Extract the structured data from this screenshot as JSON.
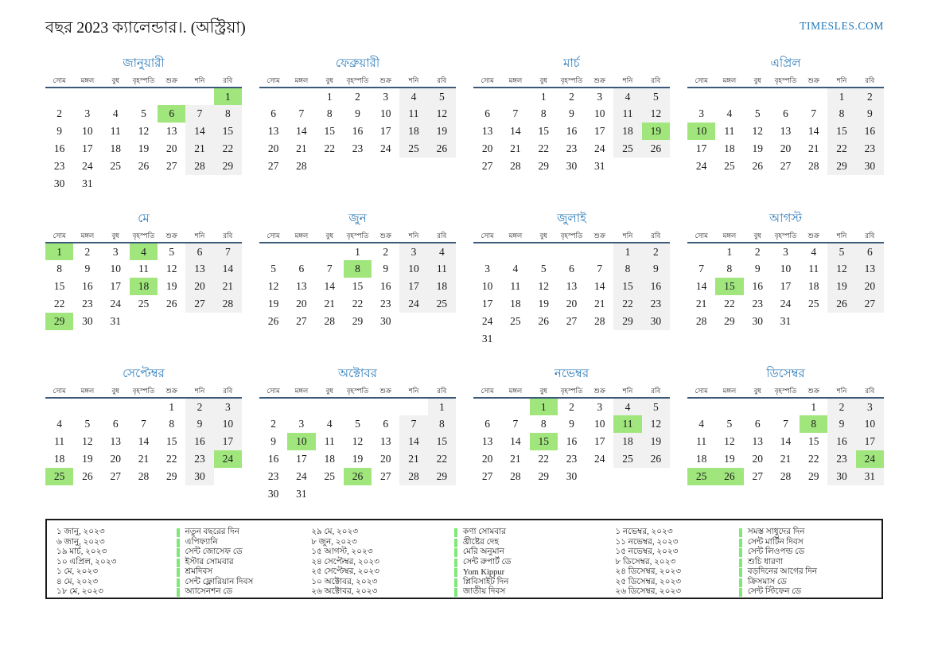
{
  "page": {
    "title": "বছর 2023 ক্যালেন্ডার।. (অস্ট্রিয়া)",
    "brand": "TIMESLES.COM"
  },
  "colors": {
    "accent_blue": "#2b7bba",
    "header_line": "#3c5a78",
    "weekend_bg": "#f1f1f1",
    "holiday_green": "#a0e67d",
    "legend_bar_green": "#80e878"
  },
  "weekdays": [
    "সোম",
    "মঙ্গল",
    "বুধ",
    "বৃহস্পতি",
    "শুক্র",
    "শনি",
    "রবি"
  ],
  "months": [
    {
      "name": "জানুয়ারী",
      "start": 6,
      "days": 31,
      "holidays": [
        1,
        6
      ]
    },
    {
      "name": "ফেব্রুয়ারী",
      "start": 2,
      "days": 28,
      "holidays": []
    },
    {
      "name": "মার্চ",
      "start": 2,
      "days": 31,
      "holidays": [
        19
      ]
    },
    {
      "name": "এপ্রিল",
      "start": 5,
      "days": 30,
      "holidays": [
        10
      ]
    },
    {
      "name": "মে",
      "start": 0,
      "days": 31,
      "holidays": [
        1,
        4,
        18,
        29
      ]
    },
    {
      "name": "জুন",
      "start": 3,
      "days": 30,
      "holidays": [
        8
      ]
    },
    {
      "name": "জুলাই",
      "start": 5,
      "days": 31,
      "holidays": []
    },
    {
      "name": "আগস্ট",
      "start": 1,
      "days": 31,
      "holidays": [
        15
      ]
    },
    {
      "name": "সেপ্টেম্বর",
      "start": 4,
      "days": 30,
      "holidays": [
        24,
        25
      ]
    },
    {
      "name": "অক্টোবর",
      "start": 6,
      "days": 31,
      "holidays": [
        10,
        26
      ]
    },
    {
      "name": "নভেম্বর",
      "start": 2,
      "days": 30,
      "holidays": [
        1,
        11,
        15
      ]
    },
    {
      "name": "ডিসেম্বর",
      "start": 4,
      "days": 31,
      "holidays": [
        8,
        24,
        25,
        26
      ]
    }
  ],
  "legend": {
    "columns": [
      [
        {
          "date": "১ জানু, ২০২৩",
          "name": "নতুন বছরের দিন"
        },
        {
          "date": "৬ জানু, ২০২৩",
          "name": "এপিফ্যানি"
        },
        {
          "date": "১৯ মার্চ, ২০২৩",
          "name": "সেন্ট জোসেফ ডে"
        },
        {
          "date": "১০ এপ্রিল, ২০২৩",
          "name": "ইস্টার সোমবার"
        },
        {
          "date": "১ মে, ২০২৩",
          "name": "শ্রমদিবস"
        },
        {
          "date": "৪ মে, ২০২৩",
          "name": "সেন্ট ফ্লোরিয়ান দিবস"
        },
        {
          "date": "১৮ মে, ২০২৩",
          "name": "অ্যাসেনশন ডে"
        }
      ],
      [
        {
          "date": "২৯ মে, ২০২৩",
          "name": "কণা সোমবার"
        },
        {
          "date": "৮ জুন, ২০২৩",
          "name": "খ্রীষ্টের দেহ"
        },
        {
          "date": "১৫ আগস্ট, ২০২৩",
          "name": "মেরি অনুমান"
        },
        {
          "date": "২৪ সেপ্টেম্বর, ২০২৩",
          "name": "সেন্ট রুপার্ট ডে"
        },
        {
          "date": "২৫ সেপ্টেম্বর, ২০২৩",
          "name": "Yom Kippur"
        },
        {
          "date": "১০ অক্টোবর, ২০২৩",
          "name": "প্লিবিসাইট দিন"
        },
        {
          "date": "২৬ অক্টোবর, ২০২৩",
          "name": "জাতীয় দিবস"
        }
      ],
      [
        {
          "date": "১ নভেম্বর, ২০২৩",
          "name": "সমস্ত সাধুদের দিন"
        },
        {
          "date": "১১ নভেম্বর, ২০২৩",
          "name": "সেন্ট মার্টিন দিবস"
        },
        {
          "date": "১৫ নভেম্বর, ২০২৩",
          "name": "সেন্ট লিওপল্ড ডে"
        },
        {
          "date": "৮ ডিসেম্বর, ২০২৩",
          "name": "শুচি ধারণা"
        },
        {
          "date": "২৪ ডিসেম্বর, ২০২৩",
          "name": "বড়দিনের আগের দিন"
        },
        {
          "date": "২৫ ডিসেম্বর, ২০২৩",
          "name": "ক্রিসমাস ডে"
        },
        {
          "date": "২৬ ডিসেম্বর, ২০২৩",
          "name": "সেন্ট স্টিফেন ডে"
        }
      ]
    ]
  }
}
